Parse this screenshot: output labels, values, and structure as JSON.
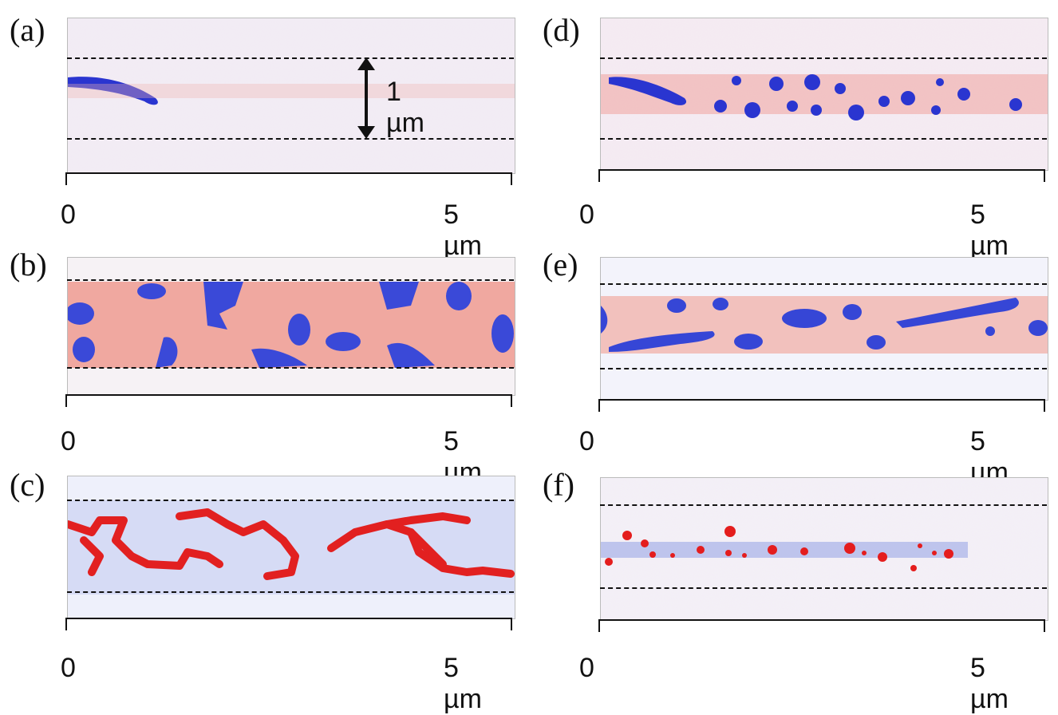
{
  "panels": [
    {
      "label": "(a)",
      "x_start": "0",
      "x_end": "5 µm"
    },
    {
      "label": "(b)",
      "x_start": "0",
      "x_end": "5 µm"
    },
    {
      "label": "(c)",
      "x_start": "0",
      "x_end": "5 µm"
    },
    {
      "label": "(d)",
      "x_start": "0",
      "x_end": "5 µm"
    },
    {
      "label": "(e)",
      "x_start": "0",
      "x_end": "5 µm"
    },
    {
      "label": "(f)",
      "x_start": "0",
      "x_end": "5 µm"
    }
  ],
  "scale_bar": {
    "label": "1 µm"
  },
  "colors": {
    "red": "#e8504a",
    "blue": "#2f3fd6",
    "dashed": "#111111"
  }
}
